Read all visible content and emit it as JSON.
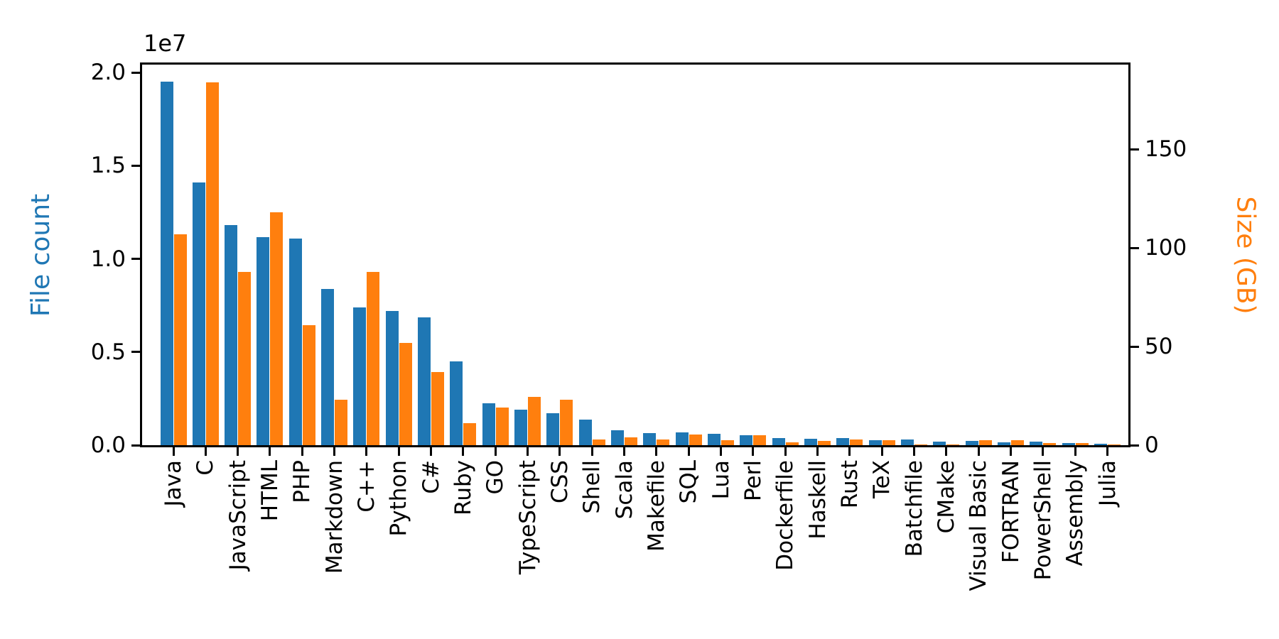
{
  "figure": {
    "offset_text": "1e7",
    "left_axis": {
      "label": "File count",
      "color": "#1f77b4",
      "ticks": [
        {
          "label": "0.0",
          "value": 0
        },
        {
          "label": "0.5",
          "value": 5000000
        },
        {
          "label": "1.0",
          "value": 10000000
        },
        {
          "label": "1.5",
          "value": 15000000
        },
        {
          "label": "2.0",
          "value": 20000000
        }
      ]
    },
    "right_axis": {
      "label": "Size (GB)",
      "color": "#ff7f0e",
      "ticks": [
        {
          "label": "0",
          "value": 0
        },
        {
          "label": "50",
          "value": 50
        },
        {
          "label": "100",
          "value": 100
        },
        {
          "label": "150",
          "value": 150
        }
      ]
    }
  },
  "chart_data": {
    "type": "bar",
    "title": "",
    "xlabel": "",
    "ylabel": "File count",
    "ylabel_right": "Size (GB)",
    "ylim_left": [
      0,
      20420000
    ],
    "ylim_right": [
      0,
      193
    ],
    "grid": false,
    "legend": "none",
    "categories": [
      "Java",
      "C",
      "JavaScript",
      "HTML",
      "PHP",
      "Markdown",
      "C++",
      "Python",
      "C#",
      "Ruby",
      "GO",
      "TypeScript",
      "CSS",
      "Shell",
      "Scala",
      "Makefile",
      "SQL",
      "Lua",
      "Perl",
      "Dockerfile",
      "Haskell",
      "Rust",
      "TeX",
      "Batchfile",
      "CMake",
      "Visual Basic",
      "FORTRAN",
      "PowerShell",
      "Assembly",
      "Julia"
    ],
    "series": [
      {
        "name": "File count",
        "axis": "left",
        "color": "#1f77b4",
        "values": [
          19500000,
          14100000,
          11800000,
          11150000,
          11100000,
          8400000,
          7400000,
          7200000,
          6850000,
          4500000,
          2250000,
          1900000,
          1710000,
          1370000,
          800000,
          650000,
          690000,
          600000,
          520000,
          380000,
          330000,
          370000,
          260000,
          290000,
          200000,
          210000,
          140000,
          180000,
          130000,
          60000
        ]
      },
      {
        "name": "Size (GB)",
        "axis": "right",
        "color": "#ff7f0e",
        "values": [
          107,
          184,
          88,
          118,
          61,
          23,
          88,
          52,
          37,
          11,
          19,
          24.5,
          23,
          3,
          4,
          3,
          5.5,
          2.4,
          5,
          1.3,
          2.2,
          3,
          2.5,
          0.5,
          0.4,
          2.6,
          2.5,
          1,
          1,
          0.3
        ]
      }
    ]
  }
}
